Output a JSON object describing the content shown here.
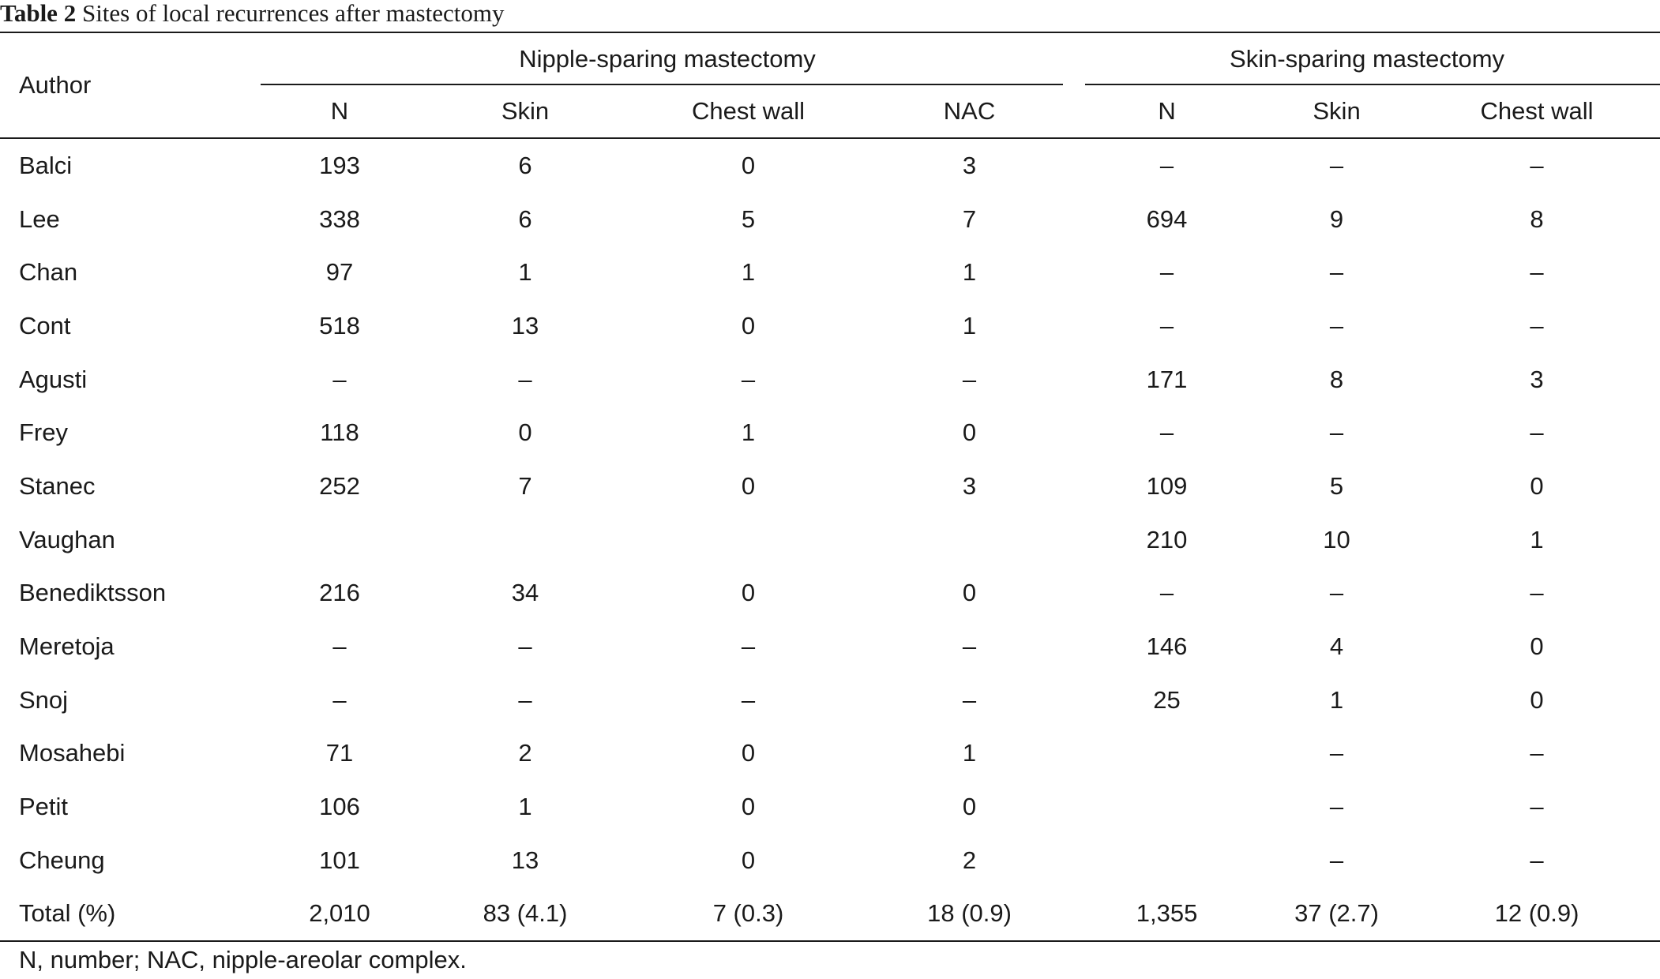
{
  "caption": {
    "label": "Table 2",
    "text": "Sites of local recurrences after mastectomy"
  },
  "header": {
    "author": "Author",
    "group_nsm": "Nipple-sparing mastectomy",
    "group_ssm": "Skin-sparing mastectomy",
    "subcolumns": [
      "N",
      "Skin",
      "Chest wall",
      "NAC",
      "N",
      "Skin",
      "Chest wall"
    ]
  },
  "rows": [
    {
      "author": "Balci",
      "cells": [
        "193",
        "6",
        "0",
        "3",
        "–",
        "–",
        "–"
      ]
    },
    {
      "author": "Lee",
      "cells": [
        "338",
        "6",
        "5",
        "7",
        "694",
        "9",
        "8"
      ]
    },
    {
      "author": "Chan",
      "cells": [
        "97",
        "1",
        "1",
        "1",
        "–",
        "–",
        "–"
      ]
    },
    {
      "author": "Cont",
      "cells": [
        "518",
        "13",
        "0",
        "1",
        "–",
        "–",
        "–"
      ]
    },
    {
      "author": "Agusti",
      "cells": [
        "–",
        "–",
        "–",
        "–",
        "171",
        "8",
        "3"
      ]
    },
    {
      "author": "Frey",
      "cells": [
        "118",
        "0",
        "1",
        "0",
        "–",
        "–",
        "–"
      ]
    },
    {
      "author": "Stanec",
      "cells": [
        "252",
        "7",
        "0",
        "3",
        "109",
        "5",
        "0"
      ]
    },
    {
      "author": "Vaughan",
      "cells": [
        "",
        "",
        "",
        "",
        "210",
        "10",
        "1"
      ]
    },
    {
      "author": "Benediktsson",
      "cells": [
        "216",
        "34",
        "0",
        "0",
        "–",
        "–",
        "–"
      ]
    },
    {
      "author": "Meretoja",
      "cells": [
        "–",
        "–",
        "–",
        "–",
        "146",
        "4",
        "0"
      ]
    },
    {
      "author": "Snoj",
      "cells": [
        "–",
        "–",
        "–",
        "–",
        "25",
        "1",
        "0"
      ]
    },
    {
      "author": "Mosahebi",
      "cells": [
        "71",
        "2",
        "0",
        "1",
        "",
        "–",
        "–"
      ]
    },
    {
      "author": "Petit",
      "cells": [
        "106",
        "1",
        "0",
        "0",
        "",
        "–",
        "–"
      ]
    },
    {
      "author": "Cheung",
      "cells": [
        "101",
        "13",
        "0",
        "2",
        "",
        "–",
        "–"
      ]
    },
    {
      "author": "Total (%)",
      "cells": [
        "2,010",
        "83 (4.1)",
        "7 (0.3)",
        "18 (0.9)",
        "1,355",
        "37 (2.7)",
        "12 (0.9)"
      ]
    }
  ],
  "footnote": "N, number; NAC, nipple-areolar complex."
}
